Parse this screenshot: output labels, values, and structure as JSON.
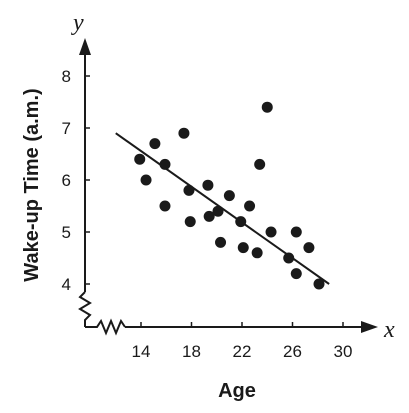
{
  "chart_data": {
    "type": "scatter",
    "xlabel": "Age",
    "ylabel": "Wake-up Time (a.m.)",
    "x_axis_var": "x",
    "y_axis_var": "y",
    "xlim": [
      10.5,
      30
    ],
    "ylim": [
      3.6,
      8.5
    ],
    "x_ticks": [
      "14",
      "18",
      "22",
      "26",
      "30"
    ],
    "y_ticks": [
      "4",
      "5",
      "6",
      "7",
      "8"
    ],
    "axis_breaks": [
      "x",
      "y"
    ],
    "grid": false,
    "points": [
      {
        "x": 13.9,
        "y": 6.4
      },
      {
        "x": 14.4,
        "y": 6.0
      },
      {
        "x": 15.1,
        "y": 6.7
      },
      {
        "x": 15.9,
        "y": 6.3
      },
      {
        "x": 15.9,
        "y": 5.5
      },
      {
        "x": 17.4,
        "y": 6.9
      },
      {
        "x": 17.8,
        "y": 5.8
      },
      {
        "x": 17.9,
        "y": 5.2
      },
      {
        "x": 19.3,
        "y": 5.9
      },
      {
        "x": 19.4,
        "y": 5.3
      },
      {
        "x": 20.1,
        "y": 5.4
      },
      {
        "x": 20.3,
        "y": 4.8
      },
      {
        "x": 21.0,
        "y": 5.7
      },
      {
        "x": 21.9,
        "y": 5.2
      },
      {
        "x": 22.1,
        "y": 4.7
      },
      {
        "x": 22.6,
        "y": 5.5
      },
      {
        "x": 23.2,
        "y": 4.6
      },
      {
        "x": 23.4,
        "y": 6.3
      },
      {
        "x": 24.0,
        "y": 7.4
      },
      {
        "x": 24.3,
        "y": 5.0
      },
      {
        "x": 25.7,
        "y": 4.5
      },
      {
        "x": 26.3,
        "y": 5.0
      },
      {
        "x": 26.3,
        "y": 4.2
      },
      {
        "x": 27.3,
        "y": 4.7
      },
      {
        "x": 28.1,
        "y": 4.0
      }
    ],
    "trend_line": {
      "x1": 12.0,
      "y1": 6.9,
      "x2": 28.9,
      "y2": 4.0
    },
    "colors": {
      "marker": "#1a1a1a",
      "line": "#1a1a1a",
      "axis": "#1a1a1a"
    }
  }
}
